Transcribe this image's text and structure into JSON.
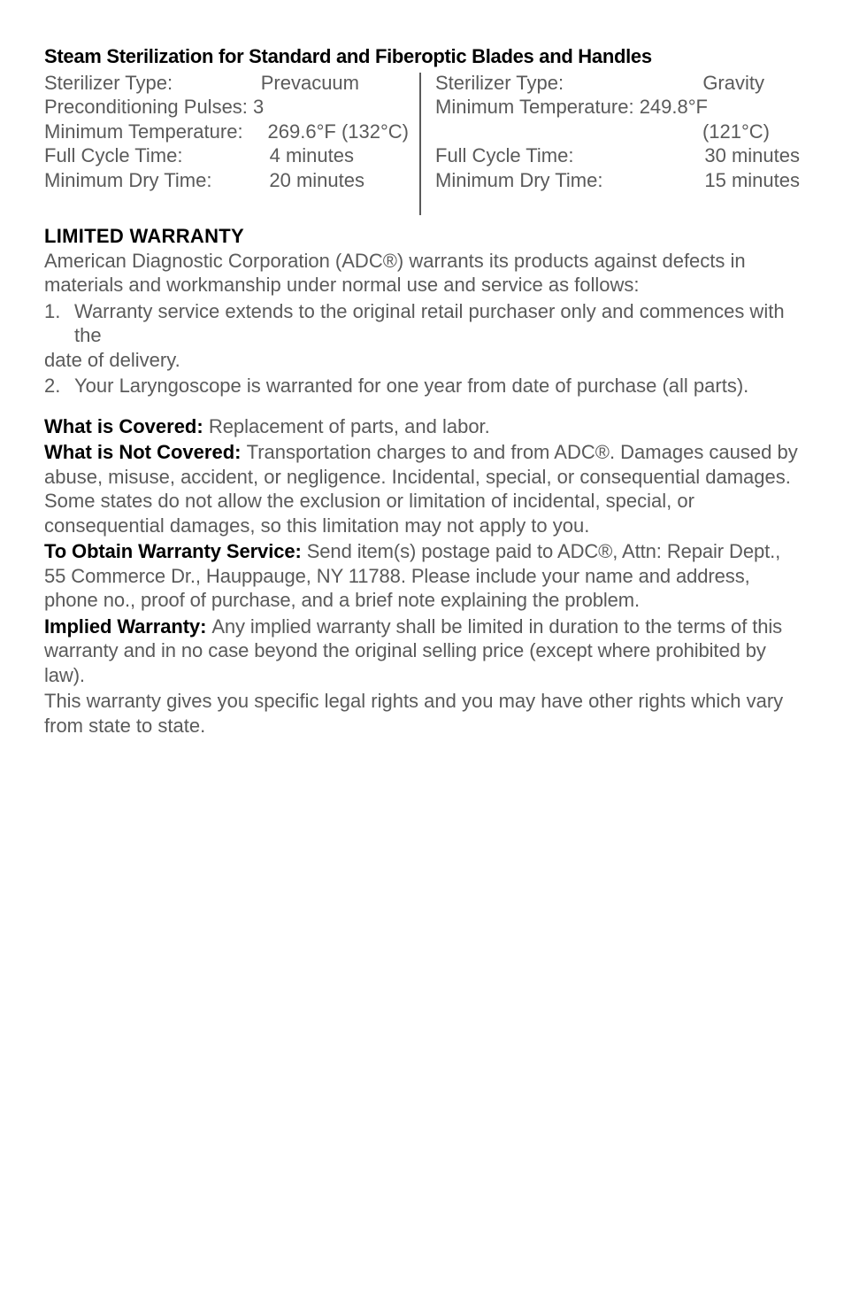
{
  "steam": {
    "title": "Steam Sterilization for Standard and Fiberoptic Blades and Handles",
    "left": {
      "sterilizer_type_label": "Sterilizer Type:",
      "sterilizer_type_value": "Prevacuum",
      "precond_label": "Preconditioning Pulses:",
      "precond_value": "3",
      "min_temp_label": "Minimum Temperature:",
      "min_temp_value": "269.6°F (132°C)",
      "full_cycle_label": "Full Cycle Time:",
      "full_cycle_value": "4 minutes",
      "min_dry_label": "Minimum Dry Time:",
      "min_dry_value": "20 minutes"
    },
    "right": {
      "sterilizer_type_label": "Sterilizer Type:",
      "sterilizer_type_value": "Gravity",
      "min_temp_label": "Minimum Temperature:",
      "min_temp_value": "249.8°F",
      "min_temp_value2": "(121°C)",
      "full_cycle_label": "Full Cycle Time:",
      "full_cycle_value": "30 minutes",
      "min_dry_label": "Minimum Dry Time:",
      "min_dry_value": "15 minutes"
    }
  },
  "warranty": {
    "heading": "LIMITED WARRANTY",
    "intro": "American Diagnostic Corporation (ADC®) warrants its products against defects in materials and workmanship under normal use and service as follows:",
    "item1_num": "1.",
    "item1_text": "Warranty service extends to the original retail purchaser only and commences with the date of delivery.",
    "item2_num": "2.",
    "item2_text": "Your Laryngoscope is warranted for one year from date of purchase (all parts).",
    "covered_label": "What is Covered: ",
    "covered_text": "Replacement of parts, and labor.",
    "not_covered_label": "What is Not Covered: ",
    "not_covered_text": "Transportation charges to and from ADC®. Damages caused by abuse, misuse, accident, or negligence. Incidental, special, or consequential damages. Some states do not allow the exclusion or limitation of incidental, special, or consequential damages, so this limitation may not apply to you.",
    "obtain_label": "To Obtain Warranty Service: ",
    "obtain_text": "Send item(s) postage paid to ADC®, Attn: Repair Dept., 55 Commerce Dr., Hauppauge, NY 11788. Please include your name and address, phone no., proof of purchase, and a brief note explaining the problem.",
    "implied_label": "Implied Warranty: ",
    "implied_text": "Any implied warranty shall be limited in duration to the terms of this warranty and in no case beyond the original selling price (except where prohibited by law).",
    "closing": "This warranty gives you specific legal rights and you may have other rights which vary from state to state."
  }
}
